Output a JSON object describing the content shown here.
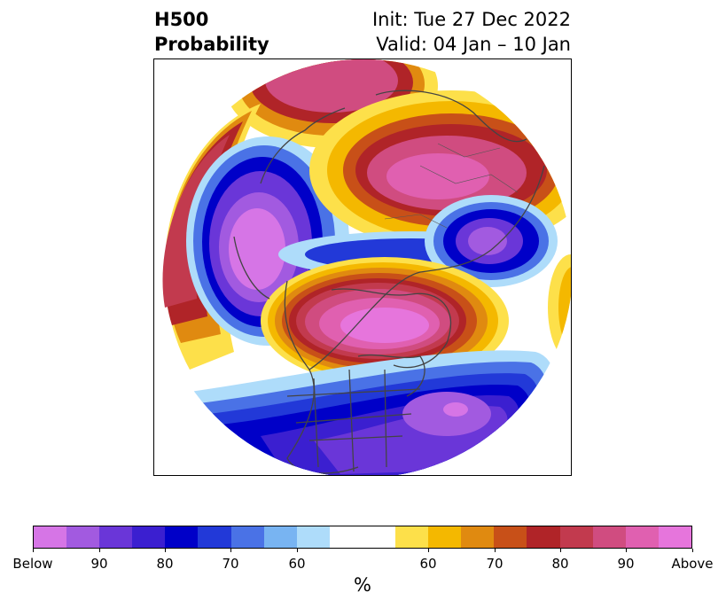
{
  "title": {
    "left_line1": "H500",
    "left_line2": "Probability",
    "right_line1": "Init: Tue 27 Dec 2022",
    "right_line2": "Valid: 04 Jan – 10 Jan"
  },
  "colorbar": {
    "colors": [
      "#d675e6",
      "#a25ae0",
      "#6a36d8",
      "#3b1fd0",
      "#0000c8",
      "#2239d8",
      "#4a72e6",
      "#78b4f2",
      "#aedcfa",
      "#ffffff",
      "#ffffff",
      "#fde04a",
      "#f4b800",
      "#e08a10",
      "#c85018",
      "#b02428",
      "#c23a4e",
      "#d04c80",
      "#e060b0",
      "#e675dc"
    ],
    "tick_labels": [
      "Below",
      "90",
      "80",
      "70",
      "60",
      "60",
      "70",
      "80",
      "90",
      "Above"
    ],
    "unit_label": "%"
  },
  "map": {
    "projection": "north-polar-stereographic",
    "variable": "500 hPa height anomaly probability",
    "below_color": "#7a3bdc",
    "above_color": "#d04c80"
  }
}
